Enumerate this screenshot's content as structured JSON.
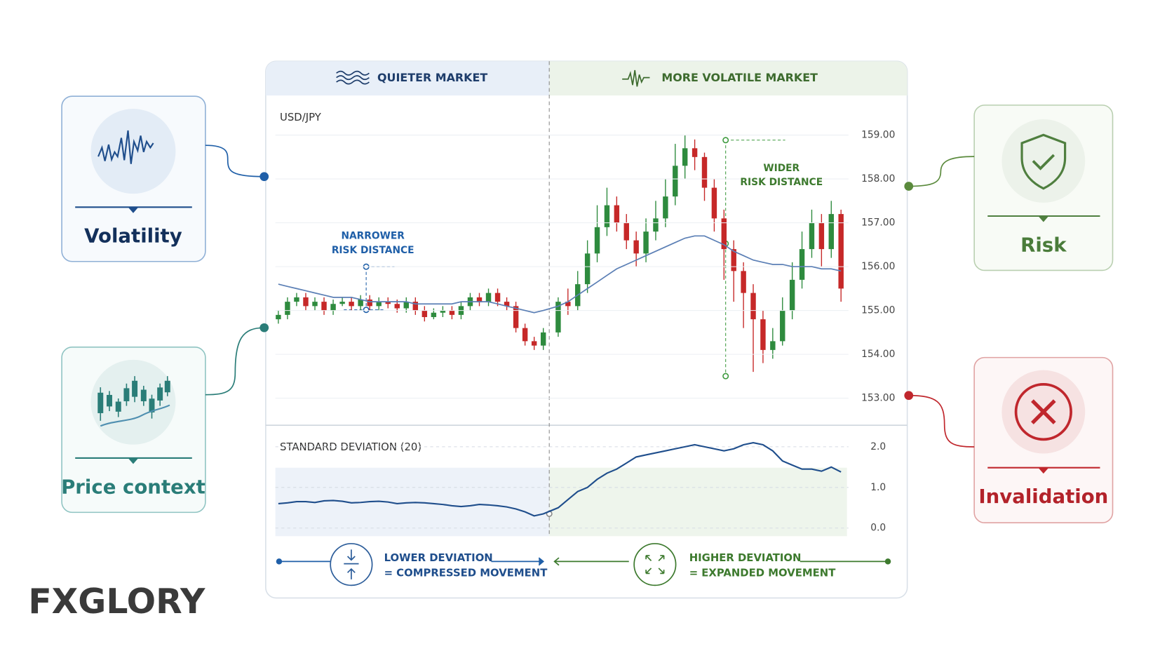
{
  "header": {
    "left_label": "QUIETER MARKET",
    "right_label": "MORE VOLATILE MARKET"
  },
  "chart_data": [
    {
      "type": "candlestick",
      "title": "USD/JPY",
      "open": [
        154.8,
        154.9,
        155.2,
        155.3,
        155.1,
        155.2,
        155.0,
        155.15,
        155.2,
        155.1,
        155.25,
        155.1,
        155.2,
        155.15,
        155.05,
        155.2,
        155.0,
        154.85,
        154.95,
        155.0,
        154.9,
        155.1,
        155.3,
        155.2,
        155.4,
        155.2,
        155.1,
        154.6,
        154.3,
        154.2,
        154.5,
        155.2,
        155.1,
        155.6,
        156.3,
        156.9,
        157.4,
        157.0,
        156.6,
        156.3,
        156.8,
        157.1,
        157.6,
        158.3,
        158.7,
        158.5,
        157.8,
        157.1,
        156.4,
        155.9,
        155.4,
        154.8,
        154.1,
        154.3,
        155.0,
        155.7,
        156.4,
        157.0,
        156.4,
        157.2
      ],
      "high": [
        155.0,
        155.3,
        155.4,
        155.4,
        155.3,
        155.3,
        155.25,
        155.3,
        155.3,
        155.35,
        155.35,
        155.3,
        155.3,
        155.25,
        155.3,
        155.3,
        155.1,
        155.05,
        155.1,
        155.1,
        155.2,
        155.4,
        155.4,
        155.5,
        155.5,
        155.3,
        155.2,
        154.7,
        154.4,
        154.6,
        155.3,
        155.5,
        155.9,
        156.6,
        157.4,
        157.8,
        157.6,
        157.2,
        156.8,
        157.1,
        157.5,
        158.0,
        158.8,
        159.0,
        158.9,
        158.6,
        158.0,
        157.3,
        156.6,
        156.1,
        155.6,
        155.0,
        154.6,
        155.3,
        156.1,
        156.8,
        157.3,
        157.2,
        157.5,
        157.3
      ],
      "low": [
        154.7,
        154.8,
        155.1,
        155.0,
        155.0,
        154.9,
        154.9,
        155.1,
        155.0,
        155.0,
        155.0,
        155.0,
        155.05,
        154.95,
        154.95,
        154.9,
        154.75,
        154.8,
        154.85,
        154.8,
        154.8,
        155.0,
        155.1,
        155.1,
        155.1,
        155.0,
        154.5,
        154.2,
        154.1,
        154.1,
        154.4,
        154.9,
        155.0,
        155.4,
        156.1,
        156.7,
        156.8,
        156.4,
        156.0,
        156.1,
        156.6,
        156.9,
        157.4,
        158.0,
        158.2,
        157.5,
        156.8,
        155.7,
        155.2,
        154.6,
        153.6,
        153.8,
        153.9,
        154.2,
        154.8,
        155.5,
        156.2,
        156.0,
        156.2,
        155.2
      ],
      "close": [
        154.9,
        155.2,
        155.3,
        155.1,
        155.2,
        155.0,
        155.15,
        155.2,
        155.1,
        155.25,
        155.1,
        155.2,
        155.15,
        155.05,
        155.2,
        155.0,
        154.85,
        154.95,
        155.0,
        154.9,
        155.1,
        155.3,
        155.2,
        155.4,
        155.2,
        155.1,
        154.6,
        154.3,
        154.2,
        154.5,
        155.2,
        155.1,
        155.6,
        156.3,
        156.9,
        157.4,
        157.0,
        156.6,
        156.3,
        156.8,
        157.1,
        157.6,
        158.3,
        158.7,
        158.5,
        157.8,
        157.1,
        156.4,
        155.9,
        155.4,
        154.8,
        154.1,
        154.3,
        155.0,
        155.7,
        156.4,
        157.0,
        156.4,
        157.2,
        155.5
      ],
      "ma": [
        155.6,
        155.55,
        155.5,
        155.45,
        155.4,
        155.35,
        155.3,
        155.3,
        155.3,
        155.25,
        155.2,
        155.2,
        155.2,
        155.2,
        155.2,
        155.15,
        155.15,
        155.15,
        155.15,
        155.15,
        155.2,
        155.2,
        155.2,
        155.2,
        155.15,
        155.1,
        155.05,
        155.0,
        154.95,
        155.0,
        155.1,
        155.2,
        155.35,
        155.5,
        155.65,
        155.8,
        155.95,
        156.05,
        156.15,
        156.25,
        156.35,
        156.45,
        156.55,
        156.65,
        156.7,
        156.7,
        156.6,
        156.5,
        156.35,
        156.25,
        156.15,
        156.1,
        156.05,
        156.05,
        156.0,
        156.0,
        156.0,
        155.95,
        155.95,
        155.9
      ],
      "up_color": "#2e8b3e",
      "down_color": "#c62828",
      "ma_color": "#5b7fb5",
      "ylim": [
        152.4,
        159.7
      ],
      "yticks": [
        {
          "value": 153,
          "label": "153.00"
        },
        {
          "value": 154,
          "label": "154.00"
        },
        {
          "value": 155,
          "label": "155.00"
        },
        {
          "value": 156,
          "label": "156.00"
        },
        {
          "value": 157,
          "label": "157.00"
        },
        {
          "value": 158,
          "label": "158.00"
        },
        {
          "value": 159,
          "label": "159.00"
        }
      ],
      "grid": true,
      "annotations": [
        {
          "lines": [
            "NARROWER",
            "RISK DISTANCE"
          ],
          "color": "#1f5fa8"
        },
        {
          "lines": [
            "WIDER",
            "RISK DISTANCE"
          ],
          "color": "#3d7a2e"
        }
      ]
    },
    {
      "type": "line",
      "title": "STANDARD DEVIATION (20)",
      "values": [
        0.6,
        0.62,
        0.65,
        0.65,
        0.63,
        0.67,
        0.68,
        0.66,
        0.62,
        0.63,
        0.65,
        0.66,
        0.64,
        0.6,
        0.62,
        0.63,
        0.62,
        0.6,
        0.58,
        0.55,
        0.53,
        0.55,
        0.58,
        0.57,
        0.55,
        0.52,
        0.47,
        0.4,
        0.3,
        0.35,
        0.5,
        0.7,
        0.9,
        1.0,
        1.2,
        1.35,
        1.45,
        1.6,
        1.75,
        1.8,
        1.85,
        1.9,
        1.95,
        2.0,
        2.05,
        2.0,
        1.95,
        1.9,
        1.95,
        2.05,
        2.1,
        2.05,
        1.9,
        1.65,
        1.55,
        1.45,
        1.45,
        1.4,
        1.5,
        1.38
      ],
      "color": "#1f4e8c",
      "ylim": [
        -0.2,
        2.2
      ],
      "yticks": [
        {
          "value": 0,
          "label": "0.0"
        },
        {
          "value": 1,
          "label": "1.0"
        },
        {
          "value": 2,
          "label": "2.0"
        }
      ]
    }
  ],
  "cards": [
    {
      "label": "Volatility"
    },
    {
      "label": "Price context"
    },
    {
      "label": "Risk"
    },
    {
      "label": "Invalidation"
    }
  ],
  "legend": {
    "left": [
      "LOWER DEVIATION",
      "= COMPRESSED MOVEMENT"
    ],
    "right": [
      "HIGHER DEVIATION",
      "= EXPANDED MOVEMENT"
    ]
  },
  "brand": "FXGLORY"
}
